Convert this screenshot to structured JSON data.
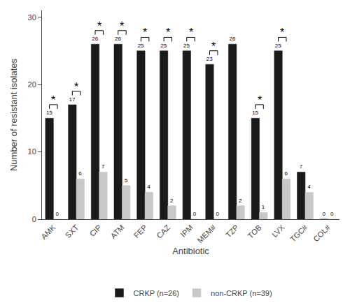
{
  "chart_data": {
    "type": "bar",
    "xlabel": "Antibiotic",
    "ylabel": "Number of resistant isolates",
    "categories": [
      "AMK",
      "SXT",
      "CIP",
      "ATM",
      "FEP",
      "CAZ",
      "IPM",
      "MEM#",
      "TZP",
      "TOB",
      "LVX",
      "TGC#",
      "COL#"
    ],
    "series": [
      {
        "name": "CRKP (n=26)",
        "color": "#1a1a1a",
        "values": [
          15,
          17,
          26,
          26,
          25,
          25,
          25,
          23,
          26,
          15,
          25,
          7,
          0
        ]
      },
      {
        "name": "non-CRKP (n=39)",
        "color": "#c8c8c8",
        "values": [
          0,
          6,
          7,
          5,
          4,
          2,
          0,
          0,
          2,
          1,
          6,
          4,
          0
        ]
      }
    ],
    "ylim": [
      0,
      31
    ],
    "yticks": [
      0,
      10,
      20,
      30
    ],
    "grid": false,
    "legend": "bottom",
    "data_labels": true,
    "annotations": [
      {
        "category": "AMK",
        "text": "*"
      },
      {
        "category": "SXT",
        "text": "*"
      },
      {
        "category": "CIP",
        "text": "*"
      },
      {
        "category": "ATM",
        "text": "*"
      },
      {
        "category": "FEP",
        "text": "*"
      },
      {
        "category": "CAZ",
        "text": "*"
      },
      {
        "category": "IPM",
        "text": "*"
      },
      {
        "category": "MEM#",
        "text": "*"
      },
      {
        "category": "TOB",
        "text": "*"
      },
      {
        "category": "LVX",
        "text": "*"
      }
    ]
  }
}
